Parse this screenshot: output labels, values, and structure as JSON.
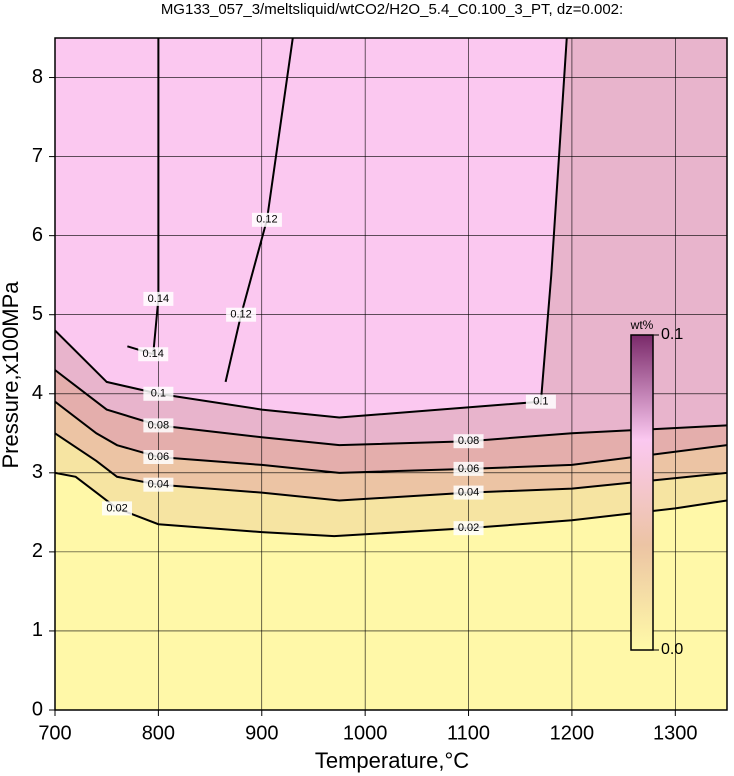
{
  "chart_data": {
    "type": "contour",
    "title": "MG133_057_3/meltsliquid/wtCO2/H2O_5.4_C0.100_3_PT, dz=0.002:",
    "x_label": "Temperature,°C",
    "y_label": "Pressure,x100MPa",
    "xlim": [
      700,
      1350
    ],
    "ylim": [
      0,
      8.5
    ],
    "xticks": [
      700,
      800,
      900,
      1000,
      1100,
      1200,
      1300
    ],
    "yticks": [
      0,
      1,
      2,
      3,
      4,
      5,
      6,
      7,
      8
    ],
    "grid": true,
    "background_color": "#fff8a8",
    "contours": [
      {
        "level": 0.02,
        "color": "#f6e4a2",
        "x": [
          700,
          720,
          740,
          760,
          800,
          900,
          970,
          1100,
          1200,
          1300,
          1350
        ],
        "y": [
          3.0,
          2.95,
          2.75,
          2.55,
          2.35,
          2.25,
          2.2,
          2.3,
          2.4,
          2.55,
          2.65
        ]
      },
      {
        "level": 0.04,
        "color": "#ecc4a4",
        "x": [
          700,
          740,
          760,
          800,
          900,
          975,
          1100,
          1200,
          1350
        ],
        "y": [
          3.5,
          3.15,
          2.95,
          2.85,
          2.75,
          2.65,
          2.75,
          2.8,
          3.0
        ]
      },
      {
        "level": 0.06,
        "color": "#e4aeac",
        "x": [
          700,
          740,
          760,
          800,
          900,
          975,
          1100,
          1200,
          1350
        ],
        "y": [
          3.9,
          3.5,
          3.35,
          3.2,
          3.1,
          3.0,
          3.05,
          3.1,
          3.35
        ]
      },
      {
        "level": 0.08,
        "color": "#e8b4cc",
        "x": [
          700,
          750,
          800,
          900,
          975,
          1100,
          1200,
          1350
        ],
        "y": [
          4.3,
          3.8,
          3.6,
          3.45,
          3.35,
          3.4,
          3.5,
          3.6
        ]
      },
      {
        "level": 0.1,
        "color": "#fbc8f0",
        "x": [
          700,
          750,
          800,
          900,
          975,
          1170,
          1180,
          1195
        ],
        "y": [
          4.8,
          4.15,
          4.0,
          3.8,
          3.7,
          3.9,
          5.5,
          8.5
        ]
      },
      {
        "level": 0.12,
        "x": [
          865,
          880,
          905,
          930
        ],
        "y": [
          4.15,
          5.0,
          6.2,
          8.5
        ]
      },
      {
        "level": 0.14,
        "x": [
          770,
          795,
          800,
          800
        ],
        "y": [
          4.6,
          4.5,
          5.2,
          8.5
        ]
      }
    ],
    "colorbar": {
      "label": "wt%",
      "ticks": [
        {
          "value": 0,
          "label": "0.0"
        },
        0.1
      ],
      "colors": [
        "#fffaa8",
        "#ecc4a4",
        "#fbc8f0",
        "#7a2a6a"
      ]
    }
  }
}
